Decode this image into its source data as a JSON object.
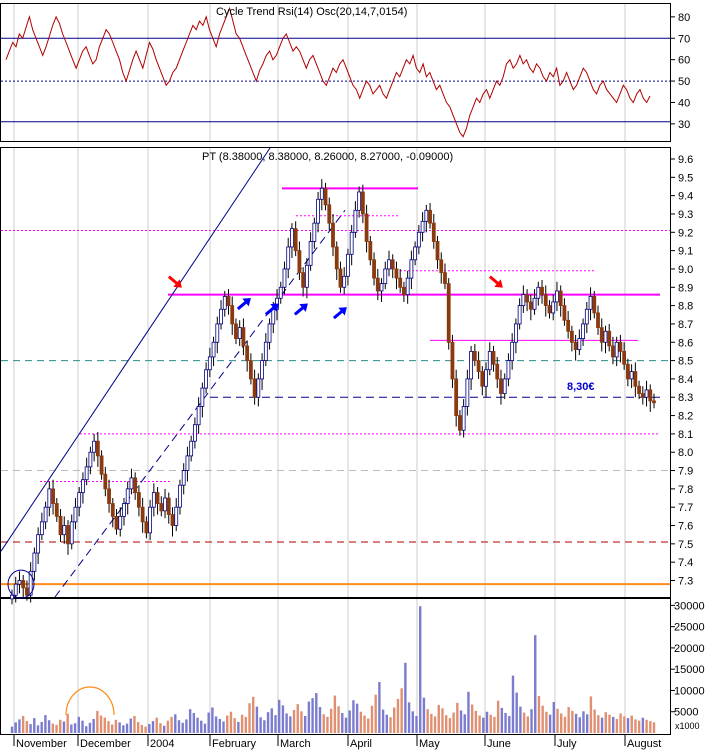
{
  "colors": {
    "panel_border": "#000000",
    "blue_line": "#00008b",
    "red_line": "#b00000",
    "magenta": "#ff00ff",
    "orange": "#ff8c1a",
    "teal": "#2e8b8b",
    "candle_up": "#ffffff",
    "candle_down": "#8b3a0f",
    "vol_up": "#7b7bd0",
    "vol_down": "#e09070",
    "arrow_red": "#ff0000",
    "arrow_blue": "#0000ff"
  },
  "chart_data": [
    {
      "type": "line",
      "panel": "indicator",
      "legend_text": "Cycle Trend Rsi(14) Osc(20,14,7,0154)",
      "y_ticks": [
        "80",
        "70",
        "60",
        "50",
        "40",
        "30"
      ],
      "ylim": [
        22,
        86
      ],
      "reference_lines": [
        {
          "value": 70,
          "style": "solid"
        },
        {
          "value": 50,
          "style": "dotted"
        },
        {
          "value": 31,
          "style": "solid"
        }
      ],
      "values": [
        60,
        64,
        68,
        66,
        72,
        70,
        75,
        80,
        74,
        70,
        66,
        62,
        66,
        71,
        76,
        80,
        77,
        72,
        68,
        64,
        60,
        56,
        60,
        64,
        66,
        62,
        58,
        60,
        66,
        70,
        74,
        72,
        68,
        64,
        60,
        54,
        50,
        55,
        60,
        64,
        60,
        56,
        62,
        68,
        65,
        60,
        56,
        52,
        48,
        50,
        54,
        56,
        60,
        64,
        68,
        72,
        76,
        74,
        78,
        76,
        80,
        74,
        70,
        66,
        72,
        76,
        80,
        84,
        78,
        72,
        70,
        66,
        62,
        58,
        54,
        50,
        55,
        58,
        62,
        64,
        60,
        62,
        66,
        70,
        72,
        68,
        64,
        66,
        64,
        60,
        56,
        60,
        62,
        58,
        54,
        50,
        48,
        52,
        56,
        54,
        58,
        60,
        56,
        52,
        48,
        46,
        42,
        46,
        50,
        48,
        44,
        46,
        48,
        44,
        42,
        46,
        50,
        54,
        52,
        56,
        60,
        58,
        62,
        56,
        54,
        58,
        52,
        54,
        50,
        46,
        48,
        44,
        40,
        38,
        34,
        30,
        26,
        24,
        28,
        34,
        38,
        42,
        40,
        44,
        46,
        42,
        46,
        50,
        48,
        52,
        58,
        60,
        56,
        58,
        62,
        58,
        60,
        56,
        54,
        58,
        56,
        52,
        50,
        54,
        52,
        56,
        48,
        50,
        54,
        50,
        46,
        48,
        52,
        56,
        54,
        50,
        46,
        44,
        48,
        50,
        46,
        44,
        42,
        40,
        44,
        48,
        46,
        42,
        40,
        44,
        46,
        42,
        40,
        43
      ]
    },
    {
      "type": "candlestick",
      "panel": "price",
      "legend_text": "PT (8.38000, 8.38000, 8.26000, 8.27000, -0.09000)",
      "y_ticks": [
        "9.6",
        "9.5",
        "9.4",
        "9.3",
        "9.2",
        "9.1",
        "9.0",
        "8.9",
        "8.8",
        "8.7",
        "8.6",
        "8.5",
        "8.4",
        "8.3",
        "8.2",
        "8.1",
        "8.0",
        "7.9",
        "7.8",
        "7.7",
        "7.6",
        "7.5",
        "7.4",
        "7.3"
      ],
      "ylim": [
        7.21,
        9.66
      ],
      "x_labels": [
        "November",
        "December",
        "2004",
        "February",
        "March",
        "April",
        "May",
        "June",
        "July",
        "August"
      ],
      "annotation": "8,30€",
      "closes": [
        7.22,
        7.28,
        7.3,
        7.26,
        7.22,
        7.35,
        7.45,
        7.55,
        7.62,
        7.7,
        7.8,
        7.72,
        7.65,
        7.55,
        7.6,
        7.5,
        7.62,
        7.7,
        7.78,
        7.85,
        7.92,
        8.0,
        8.06,
        7.98,
        7.88,
        7.8,
        7.72,
        7.65,
        7.58,
        7.65,
        7.72,
        7.8,
        7.86,
        7.78,
        7.7,
        7.62,
        7.56,
        7.7,
        7.78,
        7.72,
        7.68,
        7.75,
        7.66,
        7.6,
        7.7,
        7.82,
        7.9,
        7.98,
        8.06,
        8.15,
        8.25,
        8.35,
        8.45,
        8.52,
        8.6,
        8.7,
        8.78,
        8.85,
        8.8,
        8.7,
        8.62,
        8.68,
        8.58,
        8.5,
        8.4,
        8.3,
        8.4,
        8.5,
        8.6,
        8.7,
        8.78,
        8.84,
        8.9,
        9.0,
        9.12,
        9.22,
        9.1,
        8.98,
        8.9,
        9.02,
        9.15,
        9.25,
        9.38,
        9.44,
        9.35,
        9.25,
        9.12,
        9.0,
        8.9,
        8.96,
        9.08,
        9.2,
        9.32,
        9.42,
        9.3,
        9.15,
        9.05,
        8.95,
        8.88,
        8.92,
        9.0,
        9.05,
        9.0,
        8.95,
        8.9,
        8.86,
        8.95,
        9.05,
        9.12,
        9.2,
        9.26,
        9.32,
        9.25,
        9.15,
        9.05,
        8.98,
        8.92,
        8.6,
        8.4,
        8.2,
        8.12,
        8.25,
        8.4,
        8.55,
        8.5,
        8.44,
        8.36,
        8.45,
        8.55,
        8.48,
        8.4,
        8.32,
        8.4,
        8.5,
        8.6,
        8.7,
        8.8,
        8.86,
        8.82,
        8.78,
        8.84,
        8.9,
        8.86,
        8.8,
        8.76,
        8.82,
        8.88,
        8.8,
        8.72,
        8.66,
        8.6,
        8.56,
        8.62,
        8.7,
        8.78,
        8.85,
        8.76,
        8.68,
        8.6,
        8.66,
        8.58,
        8.52,
        8.6,
        8.55,
        8.48,
        8.4,
        8.44,
        8.36,
        8.32,
        8.3,
        8.34,
        8.28,
        8.27
      ]
    },
    {
      "type": "bar",
      "panel": "volume",
      "y_ticks": [
        "30000",
        "25000",
        "20000",
        "15000",
        "10000",
        "5000"
      ],
      "ylim": [
        0,
        31500
      ],
      "unit_label": "x1000",
      "values": [
        1500,
        2500,
        3200,
        4000,
        2800,
        2100,
        3500,
        1800,
        2600,
        4200,
        3000,
        2200,
        1900,
        3100,
        2700,
        4500,
        2000,
        2300,
        3800,
        2900,
        1600,
        2400,
        3300,
        5200,
        4100,
        3600,
        2800,
        2000,
        3100,
        2500,
        1800,
        2200,
        3400,
        4000,
        2600,
        1900,
        1500,
        2100,
        2800,
        3600,
        2300,
        1700,
        2900,
        3800,
        4400,
        3000,
        2400,
        3200,
        5600,
        4700,
        3600,
        2900,
        2200,
        4800,
        6000,
        3900,
        3300,
        2700,
        4100,
        5000,
        3500,
        2600,
        4300,
        3800,
        7000,
        8500,
        6200,
        3700,
        3000,
        4900,
        5800,
        4200,
        7800,
        6500,
        4600,
        3900,
        5400,
        6800,
        5100,
        4000,
        7400,
        8200,
        9400,
        6100,
        4400,
        3800,
        5700,
        8800,
        6300,
        4700,
        3600,
        5300,
        7700,
        6900,
        5000,
        4100,
        3400,
        6400,
        9000,
        12000,
        5500,
        4300,
        3700,
        6000,
        8000,
        10500,
        16500,
        7200,
        5100,
        4000,
        29800,
        8300,
        5600,
        4500,
        3900,
        6600,
        5800,
        4200,
        3500,
        4800,
        7100,
        5300,
        4400,
        9700,
        6700,
        5200,
        4100,
        3600,
        5000,
        4300,
        3800,
        7600,
        5900,
        4700,
        4000,
        13500,
        9500,
        6200,
        4800,
        3900,
        5600,
        23000,
        8700,
        6400,
        5000,
        4300,
        7300,
        5700,
        4600,
        3800,
        6100,
        5200,
        4500,
        3700,
        5100,
        4400,
        8600,
        5500,
        4200,
        3600,
        4900,
        4300,
        3800,
        3300,
        4600,
        3900,
        3500,
        4100,
        3200,
        2900,
        3600,
        3100,
        2800,
        2500
      ]
    }
  ]
}
